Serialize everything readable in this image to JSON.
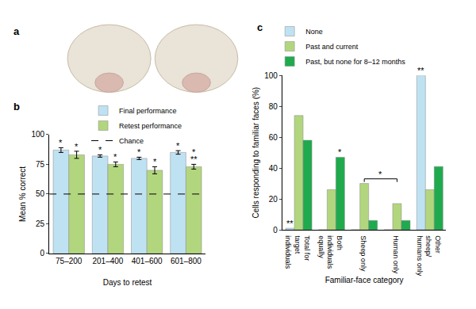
{
  "image_panel": {
    "label": "a"
  },
  "chart_data": [
    {
      "type": "bar",
      "label": "b",
      "x_label": "Days to retest",
      "y_label": "Mean % correct",
      "categories": [
        "75–200",
        "201–400",
        "401–600",
        "601–800"
      ],
      "series": [
        {
          "name": "Final performance",
          "color": "#bfe2f2",
          "values": [
            87,
            82,
            80,
            85
          ],
          "errors": [
            2,
            1,
            1,
            1.5
          ]
        },
        {
          "name": "Retest performance",
          "color": "#b2d67e",
          "values": [
            83,
            75,
            70,
            73
          ],
          "errors": [
            3,
            2,
            3,
            2
          ]
        },
        {
          "name": "Chance",
          "type": "line",
          "line_style": "dashed",
          "color": "#000000",
          "values": [
            50,
            50,
            50,
            50
          ]
        }
      ],
      "ylim": [
        0,
        100
      ],
      "yticks": [
        0,
        25,
        50,
        75,
        100
      ],
      "grid": false,
      "legend": "top left",
      "annotations": [
        {
          "text": "*",
          "category": "75–200",
          "series": "Final performance"
        },
        {
          "text": "*",
          "category": "75–200",
          "series": "Retest performance"
        },
        {
          "text": "*",
          "category": "201–400",
          "series": "Final performance"
        },
        {
          "text": "*",
          "category": "201–400",
          "series": "Retest performance"
        },
        {
          "text": "*",
          "category": "401–600",
          "series": "Final performance"
        },
        {
          "text": "*",
          "category": "401–600",
          "series": "Retest performance"
        },
        {
          "text": "*",
          "category": "601–800",
          "series": "Final performance"
        },
        {
          "text": "**",
          "category": "601–800",
          "series": "Retest performance"
        },
        {
          "text": "*",
          "category": "601–800",
          "series": "Retest performance"
        }
      ]
    },
    {
      "type": "bar",
      "label": "c",
      "x_label": "Familiar-face category",
      "y_label": "Cells responding to familiar faces (%)",
      "categories": [
        "Total for target individuals",
        "Both individuals equally",
        "Sheep only",
        "Human only",
        "Other sheep/ humans only"
      ],
      "series": [
        {
          "name": "None",
          "color": "#bfe2f2",
          "values": [
            1,
            0,
            0,
            0,
            100
          ]
        },
        {
          "name": "Past and current",
          "color": "#b2d67e",
          "values": [
            74,
            26,
            30,
            17,
            26
          ]
        },
        {
          "name": "Past, but none for 8–12 months",
          "color": "#1faa4e",
          "values": [
            58,
            47,
            6,
            6,
            41
          ]
        }
      ],
      "ylim": [
        0,
        100
      ],
      "yticks": [
        0,
        20,
        40,
        60,
        80,
        100
      ],
      "grid": false,
      "legend": "top left",
      "annotations": [
        {
          "text": "**",
          "category": "Total for target individuals",
          "series": "None"
        },
        {
          "text": "*",
          "category": "Both individuals equally",
          "series": "Past, but none for 8–12 months"
        },
        {
          "text": "**",
          "category": "Other sheep/ humans only",
          "series": "None"
        }
      ],
      "brackets": [
        {
          "text": "*",
          "categories": [
            "Sheep only",
            "Human only"
          ],
          "series": "Past and current"
        }
      ]
    }
  ]
}
